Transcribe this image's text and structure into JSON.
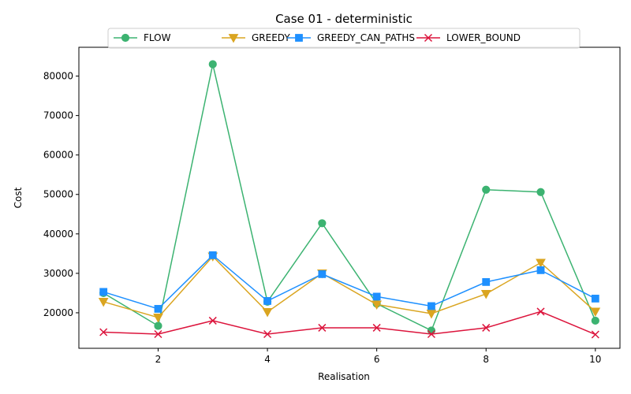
{
  "chart_data": {
    "type": "line",
    "title": "Case 01 - deterministic",
    "xlabel": "Realisation",
    "ylabel": "Cost",
    "x": [
      1,
      2,
      3,
      4,
      5,
      6,
      7,
      8,
      9,
      10
    ],
    "xlim": [
      0.55,
      10.45
    ],
    "ylim": [
      11000,
      87300
    ],
    "xticks": [
      2,
      4,
      6,
      8,
      10
    ],
    "yticks": [
      20000,
      30000,
      40000,
      50000,
      60000,
      70000,
      80000
    ],
    "grid": false,
    "legend_position": "top-center",
    "series": [
      {
        "name": "FLOW",
        "color": "#3cb371",
        "marker": "circle",
        "values": [
          25000,
          16700,
          83000,
          22800,
          42700,
          22300,
          15500,
          51200,
          50600,
          18000
        ]
      },
      {
        "name": "GREEDY",
        "color": "#daa520",
        "marker": "triangle-down",
        "values": [
          22800,
          18800,
          34300,
          20200,
          30000,
          22100,
          19800,
          24800,
          32700,
          20300
        ]
      },
      {
        "name": "GREEDY_CAN_PATHS",
        "color": "#1e90ff",
        "marker": "square",
        "values": [
          25300,
          21000,
          34600,
          23000,
          29800,
          24100,
          21700,
          27800,
          30800,
          23600
        ]
      },
      {
        "name": "LOWER_BOUND",
        "color": "#dc143c",
        "marker": "x",
        "values": [
          15100,
          14600,
          18000,
          14600,
          16200,
          16200,
          14600,
          16200,
          20300,
          14500
        ]
      }
    ]
  }
}
